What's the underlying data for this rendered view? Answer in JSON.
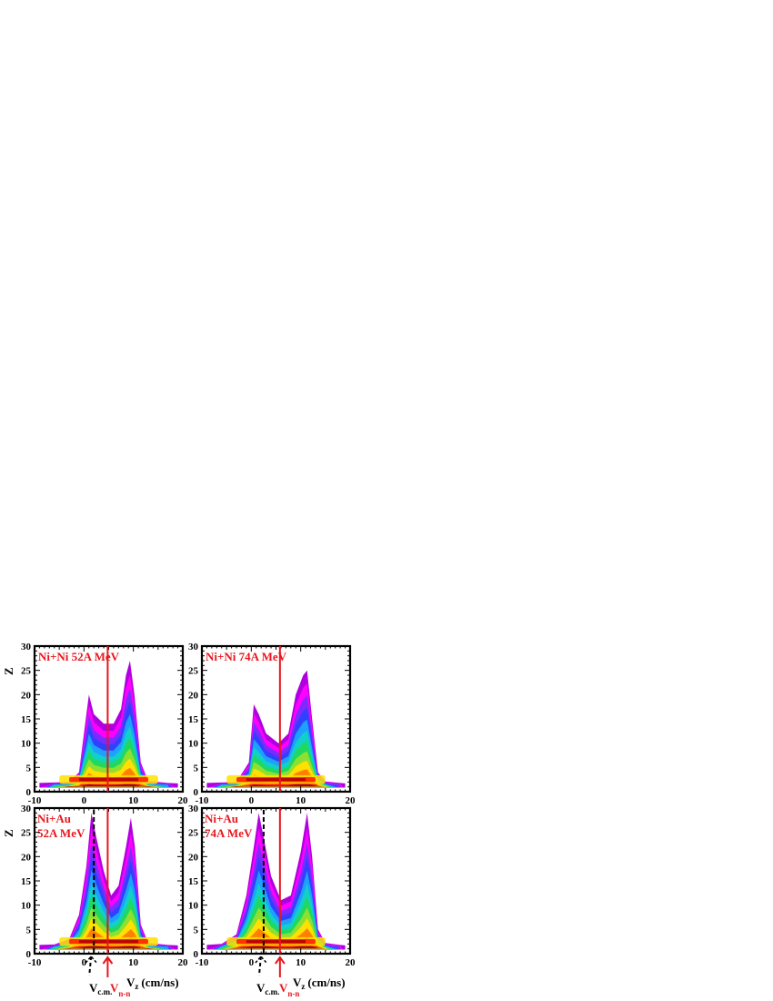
{
  "chart_data": [
    {
      "type": "heatmap",
      "title": "Ni+Ni 52A MeV",
      "ylabel": "Z",
      "xlim": [
        -10,
        20
      ],
      "ylim": [
        0,
        30
      ],
      "xticks": [
        "-10",
        "0",
        "10",
        "20"
      ],
      "yticks": [
        "0",
        "5",
        "10",
        "15",
        "20",
        "25",
        "30"
      ],
      "v_nn": 4.8,
      "ridge": [
        [
          -9,
          1.8
        ],
        [
          -6,
          1.9
        ],
        [
          -3,
          2.0
        ],
        [
          -1,
          4
        ],
        [
          0,
          12
        ],
        [
          1,
          20
        ],
        [
          2,
          16
        ],
        [
          4,
          14
        ],
        [
          6,
          14
        ],
        [
          7.5,
          17
        ],
        [
          8.5,
          24
        ],
        [
          9.3,
          27
        ],
        [
          10.2,
          20
        ],
        [
          11.5,
          6
        ],
        [
          13,
          2.2
        ],
        [
          17,
          1.8
        ],
        [
          19,
          1.7
        ]
      ]
    },
    {
      "type": "heatmap",
      "title": "Ni+Ni 74A MeV",
      "ylabel": "Z",
      "xlim": [
        -10,
        20
      ],
      "ylim": [
        0,
        30
      ],
      "xticks": [
        "-10",
        "0",
        "10",
        "20"
      ],
      "yticks": [
        "0",
        "5",
        "10",
        "15",
        "20",
        "25",
        "30"
      ],
      "v_nn": 5.8,
      "ridge": [
        [
          -9,
          1.8
        ],
        [
          -6,
          1.9
        ],
        [
          -3,
          2.0
        ],
        [
          -0.5,
          6
        ],
        [
          0.5,
          18
        ],
        [
          1.5,
          16
        ],
        [
          3,
          12
        ],
        [
          5.5,
          10
        ],
        [
          7.5,
          12
        ],
        [
          9,
          20
        ],
        [
          10.5,
          24
        ],
        [
          11.3,
          25
        ],
        [
          12.3,
          15
        ],
        [
          13.5,
          4
        ],
        [
          15,
          2.1
        ],
        [
          18,
          1.8
        ],
        [
          19,
          1.7
        ]
      ]
    },
    {
      "type": "heatmap",
      "title": "Ni+Au",
      "subtitle": "52A MeV",
      "ylabel": "Z",
      "xlim": [
        -10,
        20
      ],
      "ylim": [
        0,
        30
      ],
      "xticks": [
        "-10",
        "0",
        "10",
        "20"
      ],
      "yticks": [
        "0",
        "5",
        "10",
        "15",
        "20",
        "25",
        "30"
      ],
      "v_nn": 4.8,
      "v_cm": 2.0,
      "xlabel": "V",
      "xlabel_sub": "z",
      "xlabel_unit": "(cm/ns)",
      "vcm_label": "V",
      "vcm_sub": "c.m.",
      "vnn_label": "V",
      "vnn_sub": "n-n",
      "ridge": [
        [
          -9,
          1.8
        ],
        [
          -6,
          1.9
        ],
        [
          -3,
          3
        ],
        [
          -1,
          8
        ],
        [
          0.5,
          18
        ],
        [
          1.5,
          29
        ],
        [
          2.5,
          24
        ],
        [
          4,
          17
        ],
        [
          5.5,
          12
        ],
        [
          7,
          14
        ],
        [
          8.5,
          22
        ],
        [
          9.5,
          28
        ],
        [
          10.3,
          22
        ],
        [
          11.5,
          6
        ],
        [
          13,
          2.2
        ],
        [
          17,
          1.8
        ],
        [
          19,
          1.7
        ]
      ]
    },
    {
      "type": "heatmap",
      "title": "Ni+Au",
      "subtitle": "74A MeV",
      "ylabel": "Z",
      "xlim": [
        -10,
        20
      ],
      "ylim": [
        0,
        30
      ],
      "xticks": [
        "-10",
        "0",
        "10",
        "20"
      ],
      "yticks": [
        "0",
        "5",
        "10",
        "15",
        "20",
        "25",
        "30"
      ],
      "v_nn": 5.8,
      "v_cm": 2.5,
      "xlabel": "V",
      "xlabel_sub": "z",
      "xlabel_unit": "(cm/ns)",
      "vcm_label": "V",
      "vcm_sub": "c.m.",
      "vnn_label": "V",
      "vnn_sub": "n-n",
      "ridge": [
        [
          -9,
          1.8
        ],
        [
          -6,
          2.0
        ],
        [
          -3,
          4
        ],
        [
          -1,
          12
        ],
        [
          0.5,
          22
        ],
        [
          1.5,
          29
        ],
        [
          2.5,
          24
        ],
        [
          4,
          16
        ],
        [
          6,
          11
        ],
        [
          8,
          12
        ],
        [
          10,
          21
        ],
        [
          11.3,
          29
        ],
        [
          12.3,
          20
        ],
        [
          13.5,
          5
        ],
        [
          15,
          2.2
        ],
        [
          18,
          1.8
        ],
        [
          19,
          1.7
        ]
      ]
    }
  ],
  "colors": {
    "vnn_line": "#e8161e",
    "vcm_line": "#000000",
    "scale": [
      "#b000e0",
      "#ff00ff",
      "#7a2cff",
      "#3040ff",
      "#1ea0ff",
      "#10d0c8",
      "#20d860",
      "#8ee030",
      "#ffe000",
      "#ff8000",
      "#ff2000",
      "#b00000"
    ]
  }
}
